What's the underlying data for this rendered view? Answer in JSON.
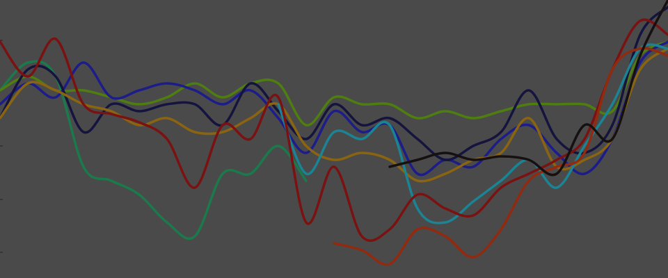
{
  "chart_data": {
    "type": "line",
    "title": "",
    "xlabel": "",
    "ylabel": "",
    "x": [
      0,
      1,
      2,
      3,
      4,
      5,
      6,
      7,
      8,
      9,
      10,
      11,
      12,
      13,
      14,
      15,
      16,
      17,
      18,
      19,
      20,
      21,
      22,
      23,
      24
    ],
    "xlim": [
      0,
      24
    ],
    "ylim": [
      0,
      100
    ],
    "yticks": [
      85.5,
      47.5,
      28.25,
      9.25
    ],
    "grid": false,
    "legend": "none",
    "background": "#4a4a4a",
    "series": [
      {
        "color": "#1a7a4c",
        "values": [
          67.5,
          77.5,
          72.5,
          40,
          35,
          30,
          20,
          15,
          37.5,
          37.5,
          47.5,
          35,
          null,
          null,
          null,
          null,
          null,
          null,
          null,
          null,
          null,
          null,
          null,
          null,
          null
        ]
      },
      {
        "color": "#4e7d10",
        "values": [
          67.5,
          72.5,
          67.5,
          67.5,
          65,
          62.5,
          65,
          70,
          65,
          70,
          70,
          55,
          65,
          62.5,
          62.5,
          57.5,
          60,
          57.5,
          60,
          62.5,
          62.5,
          62.5,
          60,
          80,
          85
        ]
      },
      {
        "color": "#1c1c8a",
        "values": [
          62.5,
          70,
          65,
          77.5,
          65,
          67.5,
          70,
          67.5,
          62.5,
          67.5,
          57.5,
          45,
          60,
          52.5,
          55,
          37.5,
          42.5,
          40,
          50,
          55,
          45,
          37.5,
          50,
          77.5,
          85
        ]
      },
      {
        "color": "#14143e",
        "values": [
          57.5,
          75,
          72.5,
          52.5,
          62.5,
          60,
          62.5,
          62.5,
          55,
          70,
          60,
          50,
          62.5,
          55,
          57.5,
          50,
          42.5,
          47.5,
          52.5,
          67.5,
          50,
          45,
          55,
          87.5,
          97.5
        ]
      },
      {
        "color": "#8a6410",
        "values": [
          57.5,
          70,
          67.5,
          62.5,
          60,
          55,
          57.5,
          52.5,
          52.5,
          57.5,
          62.5,
          47.5,
          42.5,
          45,
          42.5,
          35,
          37.5,
          42.5,
          45,
          57.5,
          40,
          42.5,
          50,
          75,
          82.5
        ]
      },
      {
        "color": "#1a8494",
        "values": [
          null,
          null,
          null,
          null,
          null,
          null,
          null,
          null,
          null,
          null,
          62.5,
          37.5,
          52.5,
          50,
          55,
          25,
          20,
          27.5,
          35,
          42.5,
          32.5,
          47.5,
          62.5,
          82.5,
          82.5
        ]
      },
      {
        "color": "#7a1212",
        "values": [
          85,
          72.5,
          86,
          62.5,
          59,
          56,
          50,
          32.5,
          55,
          50,
          65,
          20,
          40,
          15,
          17.5,
          30,
          25,
          22.5,
          32.5,
          37.5,
          42.5,
          50,
          75,
          92.5,
          87.5
        ]
      },
      {
        "color": "#922a10",
        "values": [
          null,
          null,
          null,
          null,
          null,
          null,
          null,
          null,
          null,
          null,
          null,
          null,
          12.5,
          10,
          5,
          17.5,
          15,
          7.5,
          17.5,
          35,
          40,
          45,
          75,
          82.5,
          80
        ]
      },
      {
        "color": "#161010",
        "values": [
          null,
          null,
          null,
          null,
          null,
          null,
          null,
          null,
          null,
          null,
          null,
          null,
          null,
          null,
          40,
          42.5,
          45,
          42.5,
          43.75,
          42.5,
          37.5,
          55,
          50,
          80,
          100
        ]
      }
    ]
  }
}
